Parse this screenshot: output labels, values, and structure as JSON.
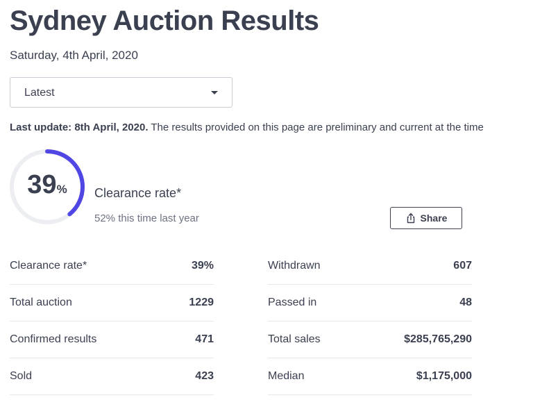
{
  "header": {
    "title": "Sydney Auction Results",
    "date": "Saturday, 4th April, 2020"
  },
  "filter": {
    "selected": "Latest",
    "icon": "chevron-down-icon"
  },
  "notice": {
    "bold": "Last update: 8th April, 2020.",
    "text": " The results provided on this page are preliminary and current at the time"
  },
  "summary": {
    "rate_value": "39",
    "rate_unit": "%",
    "rate_fraction": 0.39,
    "label": "Clearance rate*",
    "comparison": "52% this time last year",
    "ring_color": "#5046e4",
    "track_color": "#eceef1"
  },
  "share": {
    "label": "Share",
    "icon": "share-icon"
  },
  "stats_left": [
    {
      "label": "Clearance rate*",
      "value": "39%"
    },
    {
      "label": "Total auction",
      "value": "1229"
    },
    {
      "label": "Confirmed results",
      "value": "471"
    },
    {
      "label": "Sold",
      "value": "423"
    }
  ],
  "stats_right": [
    {
      "label": "Withdrawn",
      "value": "607"
    },
    {
      "label": "Passed in",
      "value": "48"
    },
    {
      "label": "Total sales",
      "value": "$285,765,290"
    },
    {
      "label": "Median",
      "value": "$1,175,000"
    }
  ]
}
